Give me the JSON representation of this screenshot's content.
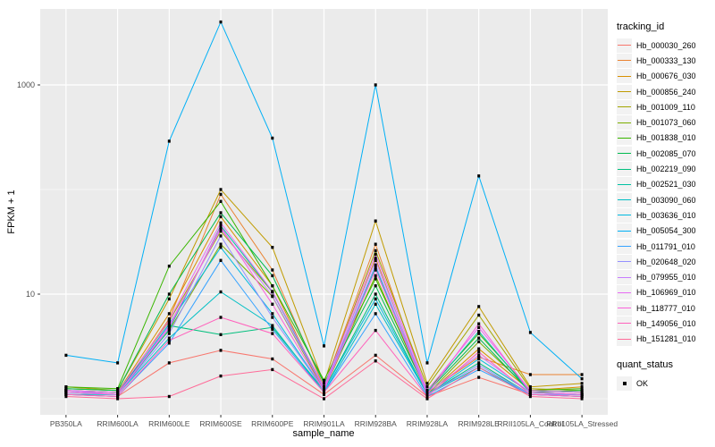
{
  "figure": {
    "background": "#FFFFFF",
    "panel_background": "#EBEBEB",
    "gridline_color": "#FFFFFF",
    "point_color": "#000000",
    "tick_color": "#333333",
    "tick_label_color": "#4D4D4D"
  },
  "chart_data": {
    "type": "line",
    "title": "",
    "xlabel": "sample_name",
    "ylabel": "FPKM + 1",
    "y_scale": "log10",
    "ylim": [
      0.67,
      5500
    ],
    "y_major_ticks": [
      {
        "label": "10",
        "value": 10
      },
      {
        "label": "1000",
        "value": 1000
      }
    ],
    "y_minor_gridlines": [
      1,
      100
    ],
    "grid": true,
    "legend_position": "right",
    "legend_title": "tracking_id",
    "categories": [
      "PB350LA",
      "RRIM600LA",
      "RRIM600LE",
      "RRIM600SE",
      "RRIM600PE",
      "RRIM901LA",
      "RRIM928BA",
      "RRIM928LA",
      "RRIM928LE",
      "RRII105LA_Control",
      "RRII105LA_Stressed"
    ],
    "series": [
      {
        "name": "Hb_000030_260",
        "color": "#F8766D",
        "values": [
          1.1,
          1.05,
          2.2,
          2.9,
          2.4,
          1.1,
          2.6,
          1.05,
          1.6,
          1.1,
          1.05
        ]
      },
      {
        "name": "Hb_000333_130",
        "color": "#EA8331",
        "values": [
          1.2,
          1.1,
          5.8,
          90,
          17,
          1.3,
          30,
          1.15,
          2.5,
          1.7,
          1.7
        ]
      },
      {
        "name": "Hb_000676_030",
        "color": "#D89000",
        "values": [
          1.2,
          1.15,
          6.5,
          55,
          12,
          1.2,
          22,
          1.1,
          3.0,
          1.2,
          1.3
        ]
      },
      {
        "name": "Hb_000856_240",
        "color": "#C09B00",
        "values": [
          1.3,
          1.2,
          9.0,
          100,
          28,
          1.4,
          50,
          1.4,
          7.6,
          1.3,
          1.4
        ]
      },
      {
        "name": "Hb_001009_110",
        "color": "#A3A500",
        "values": [
          1.2,
          1.15,
          5.5,
          40,
          10.5,
          1.3,
          26,
          1.3,
          6.3,
          1.25,
          1.2
        ]
      },
      {
        "name": "Hb_001073_060",
        "color": "#7CAE00",
        "values": [
          1.25,
          1.2,
          4.5,
          30,
          9.5,
          1.2,
          15,
          1.1,
          3.5,
          1.2,
          1.15
        ]
      },
      {
        "name": "Hb_001838_010",
        "color": "#39B600",
        "values": [
          1.3,
          1.25,
          18.5,
          77,
          12,
          1.5,
          14,
          1.2,
          4.2,
          1.2,
          1.25
        ]
      },
      {
        "name": "Hb_002085_070",
        "color": "#00BB4E",
        "values": [
          1.25,
          1.2,
          10,
          60,
          15,
          1.4,
          12,
          1.15,
          3.8,
          1.15,
          1.2
        ]
      },
      {
        "name": "Hb_002219_090",
        "color": "#00BF7D",
        "values": [
          1.2,
          1.15,
          5.0,
          4.1,
          4.8,
          1.2,
          10,
          1.1,
          2.2,
          1.1,
          1.1
        ]
      },
      {
        "name": "Hb_002521_030",
        "color": "#00C1A3",
        "values": [
          1.15,
          1.1,
          4.6,
          45,
          10.5,
          1.25,
          18,
          1.15,
          4.4,
          1.15,
          1.1
        ]
      },
      {
        "name": "Hb_003090_060",
        "color": "#00BFC4",
        "values": [
          1.1,
          1.1,
          3.8,
          10.5,
          5.0,
          1.15,
          8.0,
          1.1,
          2.0,
          1.1,
          1.05
        ]
      },
      {
        "name": "Hb_003636_010",
        "color": "#00BAE0",
        "values": [
          1.15,
          1.1,
          5.2,
          28,
          6.5,
          1.2,
          9.0,
          1.1,
          2.4,
          1.15,
          1.1
        ]
      },
      {
        "name": "Hb_005054_300",
        "color": "#00B0F6",
        "values": [
          2.6,
          2.2,
          290,
          4000,
          310,
          3.2,
          1000,
          2.2,
          135,
          4.3,
          1.55
        ]
      },
      {
        "name": "Hb_011791_010",
        "color": "#35A2FF",
        "values": [
          1.1,
          1.05,
          3.4,
          21,
          4.6,
          1.15,
          6.5,
          1.05,
          1.9,
          1.1,
          1.05
        ]
      },
      {
        "name": "Hb_020648_020",
        "color": "#9590FF",
        "values": [
          1.15,
          1.1,
          4.2,
          36,
          6.0,
          1.2,
          19,
          1.1,
          2.1,
          1.1,
          1.1
        ]
      },
      {
        "name": "Hb_079955_010",
        "color": "#C77CFF",
        "values": [
          1.2,
          1.1,
          5.0,
          42,
          9.6,
          1.25,
          21,
          1.15,
          2.6,
          1.15,
          1.1
        ]
      },
      {
        "name": "Hb_106969_010",
        "color": "#E76BF3",
        "values": [
          1.2,
          1.15,
          5.6,
          48,
          10.6,
          1.3,
          24,
          1.2,
          4.8,
          1.2,
          1.15
        ]
      },
      {
        "name": "Hb_118777_010",
        "color": "#FA62DB",
        "values": [
          1.15,
          1.1,
          4.8,
          44,
          8.0,
          1.2,
          17,
          1.1,
          5.2,
          1.15,
          1.1
        ]
      },
      {
        "name": "Hb_149056_010",
        "color": "#FF62BC",
        "values": [
          1.1,
          1.05,
          3.6,
          6.0,
          4.2,
          1.15,
          4.5,
          1.05,
          2.8,
          1.1,
          1.05
        ]
      },
      {
        "name": "Hb_151281_010",
        "color": "#FF6A98",
        "values": [
          1.05,
          1.0,
          1.05,
          1.65,
          1.9,
          1.0,
          2.3,
          1.0,
          2.0,
          1.05,
          1.0
        ]
      }
    ],
    "quant_legend": {
      "title": "quant_status",
      "items": [
        {
          "label": "OK",
          "shape": "square",
          "color": "#000000"
        }
      ]
    }
  }
}
